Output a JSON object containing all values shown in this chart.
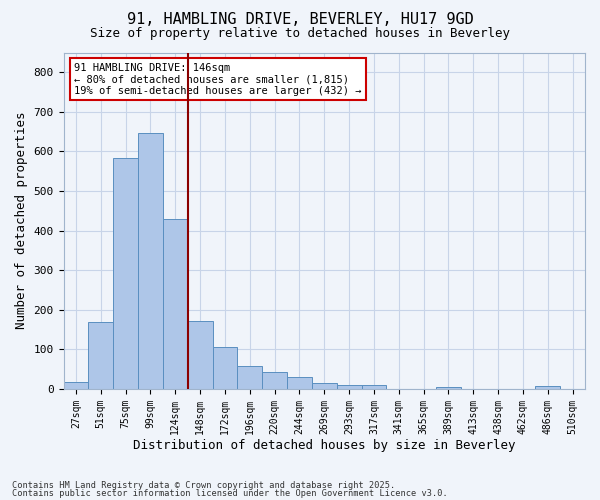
{
  "title1": "91, HAMBLING DRIVE, BEVERLEY, HU17 9GD",
  "title2": "Size of property relative to detached houses in Beverley",
  "xlabel": "Distribution of detached houses by size in Beverley",
  "ylabel": "Number of detached properties",
  "bins": [
    "27sqm",
    "51sqm",
    "75sqm",
    "99sqm",
    "124sqm",
    "148sqm",
    "172sqm",
    "196sqm",
    "220sqm",
    "244sqm",
    "269sqm",
    "293sqm",
    "317sqm",
    "341sqm",
    "365sqm",
    "389sqm",
    "413sqm",
    "438sqm",
    "462sqm",
    "486sqm",
    "510sqm"
  ],
  "values": [
    18,
    168,
    583,
    647,
    430,
    172,
    105,
    57,
    42,
    31,
    14,
    10,
    9,
    0,
    0,
    6,
    0,
    0,
    0,
    7,
    0
  ],
  "bar_color": "#aec6e8",
  "bar_edge_color": "#5a8fc0",
  "vline_color": "#8b0000",
  "annotation_text": "91 HAMBLING DRIVE: 146sqm\n← 80% of detached houses are smaller (1,815)\n19% of semi-detached houses are larger (432) →",
  "annotation_box_color": "#ffffff",
  "annotation_box_edge": "#cc0000",
  "ylim": [
    0,
    850
  ],
  "yticks": [
    0,
    100,
    200,
    300,
    400,
    500,
    600,
    700,
    800
  ],
  "footer1": "Contains HM Land Registry data © Crown copyright and database right 2025.",
  "footer2": "Contains public sector information licensed under the Open Government Licence v3.0.",
  "bg_color": "#f0f4fa",
  "grid_color": "#c8d4e8"
}
